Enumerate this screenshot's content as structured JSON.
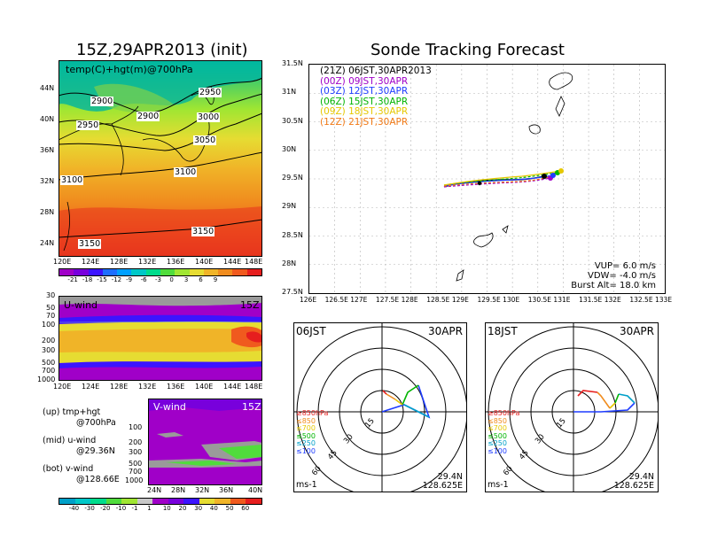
{
  "left_title": "15Z,29APR2013 (init)",
  "right_title": "Sonde Tracking Forecast",
  "map_panel": {
    "label": "temp(C)+hgt(m)@700hPa",
    "lat_ticks": [
      "44N",
      "40N",
      "36N",
      "32N",
      "28N",
      "24N"
    ],
    "lon_ticks": [
      "120E",
      "124E",
      "128E",
      "132E",
      "136E",
      "140E",
      "144E",
      "148E"
    ],
    "contour_labels": [
      "2900",
      "2950",
      "2900",
      "2950",
      "3000",
      "3050",
      "3100",
      "3100",
      "3150",
      "3150"
    ]
  },
  "temp_colorbar": {
    "labels": [
      "-21",
      "-18",
      "-15",
      "-12",
      "-9",
      "-6",
      "-3",
      "0",
      "3",
      "6",
      "9"
    ],
    "colors": [
      "#a000c8",
      "#7800dc",
      "#3c14ff",
      "#1e6eff",
      "#00a0ff",
      "#00c8c8",
      "#00dc8c",
      "#50dc3c",
      "#a0e632",
      "#e6dc32",
      "#f0b428",
      "#f08c1e",
      "#f05a1e",
      "#e61e1e"
    ]
  },
  "uwind_panel": {
    "label": "U-wind",
    "time": "15Z",
    "y_ticks": [
      "30",
      "50",
      "70",
      "100",
      "200",
      "300",
      "500",
      "700",
      "1000"
    ],
    "x_ticks": [
      "120E",
      "124E",
      "128E",
      "132E",
      "136E",
      "140E",
      "144E",
      "148E"
    ]
  },
  "vwind_panel": {
    "label": "V-wind",
    "time": "15Z",
    "y_ticks": [
      "100",
      "200",
      "300",
      "500",
      "700",
      "1000"
    ],
    "x_ticks": [
      "24N",
      "28N",
      "32N",
      "36N",
      "40N"
    ]
  },
  "wind_colorbar": {
    "labels": [
      "-40",
      "-30",
      "-20",
      "-10",
      "-1",
      "1",
      "10",
      "20",
      "30",
      "40",
      "50",
      "60"
    ],
    "colors": [
      "#00a0c8",
      "#00c8c8",
      "#00dc8c",
      "#50dc3c",
      "#a0e632",
      "#c8c8c8",
      "#a000c8",
      "#7800dc",
      "#3c14ff",
      "#e6dc32",
      "#f0b428",
      "#f05a1e",
      "#e61e1e"
    ]
  },
  "side_notes": {
    "up": "(up) tmp+hgt",
    "up2": "@700hPa",
    "mid": "(mid) u-wind",
    "mid2": "@29.36N",
    "bot": "(bot) v-wind",
    "bot2": "@128.66E"
  },
  "track_map": {
    "lat_ticks": [
      "31.5N",
      "31N",
      "30.5N",
      "30N",
      "29.5N",
      "29N",
      "28.5N",
      "28N",
      "27.5N"
    ],
    "lon_ticks": [
      "126E",
      "126.5E",
      "127E",
      "127.5E",
      "128E",
      "128.5E",
      "129E",
      "129.5E",
      "130E",
      "130.5E",
      "131E",
      "131.5E",
      "132E",
      "132.5E",
      "133E"
    ],
    "legend": [
      {
        "text": "(21Z) 06JST,30APR2013",
        "color": "#000000"
      },
      {
        "text": "(00Z) 09JST,30APR",
        "color": "#a000c8"
      },
      {
        "text": "(03Z) 12JST,30APR",
        "color": "#1e3cff"
      },
      {
        "text": "(06Z) 15JST,30APR",
        "color": "#00b400"
      },
      {
        "text": "(09Z) 18JST,30APR",
        "color": "#e6c800"
      },
      {
        "text": "(12Z) 21JST,30APR",
        "color": "#f07814"
      }
    ],
    "params": {
      "vup": "VUP=  6.0  m/s",
      "vdw": "VDW= -4.0  m/s",
      "burst": "Burst Alt= 18.0  km"
    }
  },
  "hodo_left": {
    "time": "06JST",
    "date": "30APR",
    "ring_labels": [
      "15",
      "30",
      "45",
      "60"
    ],
    "levels": [
      "≥850hPa",
      "≤850",
      "≤700",
      "≤500",
      "≤250",
      "≤100"
    ],
    "level_colors": [
      "#e61e1e",
      "#f08c1e",
      "#e6c800",
      "#00b400",
      "#00a0c8",
      "#1e3cff"
    ],
    "units": "ms-1",
    "lat": "29.4N",
    "lon": "128.625E"
  },
  "hodo_right": {
    "time": "18JST",
    "date": "30APR",
    "ring_labels": [
      "15",
      "30",
      "45",
      "60"
    ],
    "levels": [
      "≥850hPa",
      "≤850",
      "≤700",
      "≤500",
      "≤250",
      "≤100"
    ],
    "level_colors": [
      "#e61e1e",
      "#f08c1e",
      "#e6c800",
      "#00b400",
      "#00a0c8",
      "#1e3cff"
    ],
    "units": "ms-1",
    "lat": "29.4N",
    "lon": "128.625E"
  }
}
